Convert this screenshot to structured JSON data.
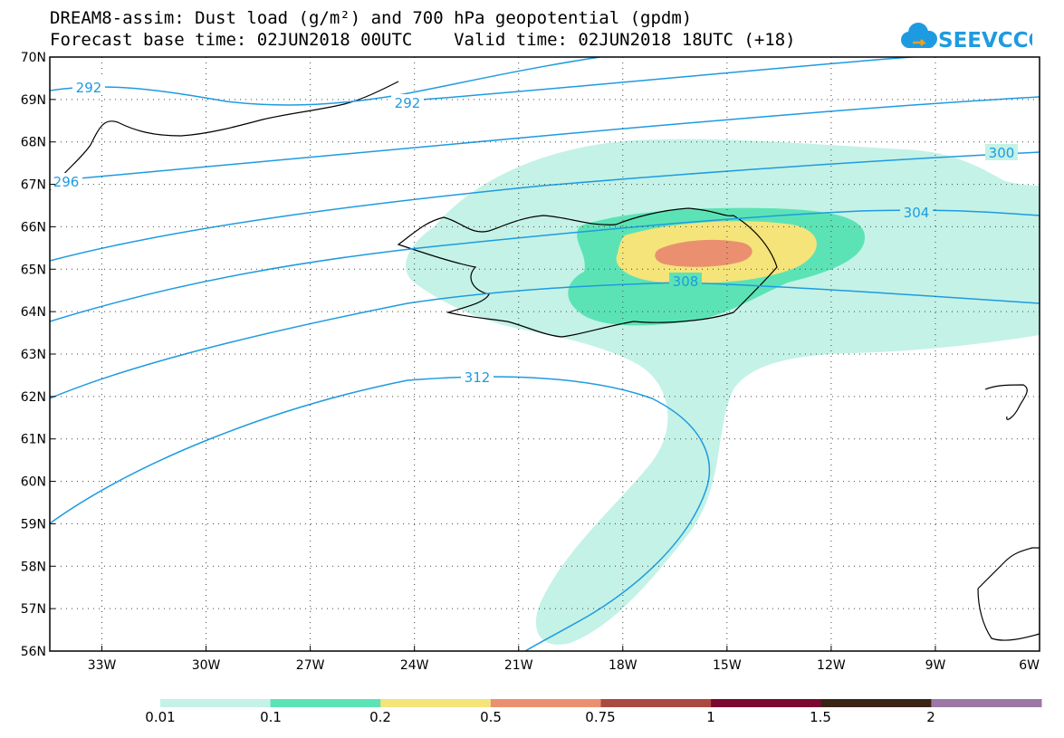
{
  "title": {
    "line1": "DREAM8-assim: Dust load (g/m²) and 700 hPa geopotential (gpdm)",
    "line2": "Forecast base time: 02JUN2018 00UTC    Valid time: 02JUN2018 18UTC (+18)"
  },
  "logo": {
    "text": "SEEVCCC",
    "icon": "cloud-logo-icon",
    "color": "#1e9be0"
  },
  "chart_data": {
    "type": "heatmap",
    "map_extent": {
      "lon": [
        -34.5,
        -6
      ],
      "lat": [
        56,
        70
      ]
    },
    "x_ticks": [
      "33W",
      "30W",
      "27W",
      "24W",
      "21W",
      "18W",
      "15W",
      "12W",
      "9W",
      "6W"
    ],
    "y_ticks": [
      "70N",
      "69N",
      "68N",
      "67N",
      "66N",
      "65N",
      "64N",
      "63N",
      "62N",
      "61N",
      "60N",
      "59N",
      "58N",
      "57N",
      "56N"
    ],
    "grid": "dotted",
    "contours": {
      "field": "700 hPa geopotential",
      "unit": "gpdm",
      "color": "#1e9be0",
      "levels": [
        292,
        296,
        300,
        304,
        308,
        312
      ],
      "labels": [
        "292",
        "292",
        "296",
        "300",
        "304",
        "308",
        "312"
      ]
    },
    "colorbar": {
      "field": "Dust load",
      "unit": "g/m²",
      "labels": [
        "0.01",
        "0.1",
        "0.2",
        "0.5",
        "0.75",
        "1",
        "1.5",
        "2"
      ],
      "colors": [
        "#c4f2e6",
        "#5ce3b5",
        "#f5e47a",
        "#ea9070",
        "#ab4a42",
        "#7b0a30",
        "#3a2414",
        "#9b78a5"
      ]
    }
  }
}
